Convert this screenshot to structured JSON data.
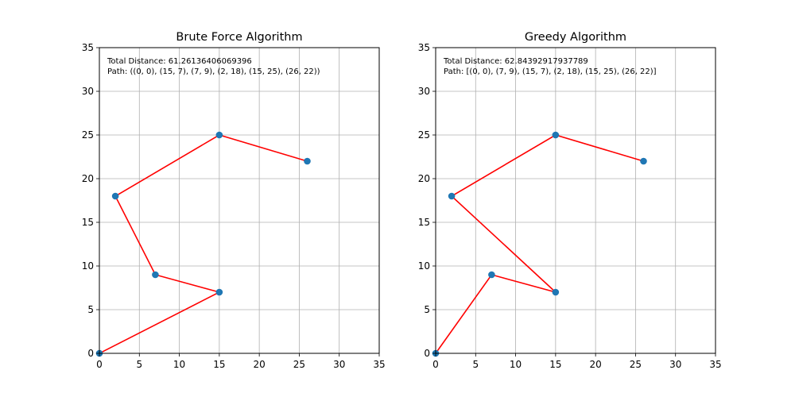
{
  "chart_data": [
    {
      "type": "scatter",
      "title": "Brute Force Algorithm",
      "xlabel": "",
      "ylabel": "",
      "xlim": [
        0,
        35
      ],
      "ylim": [
        0,
        35
      ],
      "xticks": [
        0,
        5,
        10,
        15,
        20,
        25,
        30,
        35
      ],
      "yticks": [
        0,
        5,
        10,
        15,
        20,
        25,
        30,
        35
      ],
      "grid": true,
      "points": [
        [
          0,
          0
        ],
        [
          15,
          7
        ],
        [
          7,
          9
        ],
        [
          2,
          18
        ],
        [
          15,
          25
        ],
        [
          26,
          22
        ]
      ],
      "path": [
        [
          0,
          0
        ],
        [
          15,
          7
        ],
        [
          7,
          9
        ],
        [
          2,
          18
        ],
        [
          15,
          25
        ],
        [
          26,
          22
        ]
      ],
      "point_color": "#1f77b4",
      "line_color": "#ff0000",
      "annotations": [
        "Total Distance: 61.26136406069396",
        "Path: ((0, 0), (15, 7), (7, 9), (2, 18), (15, 25), (26, 22))"
      ]
    },
    {
      "type": "scatter",
      "title": "Greedy Algorithm",
      "xlabel": "",
      "ylabel": "",
      "xlim": [
        0,
        35
      ],
      "ylim": [
        0,
        35
      ],
      "xticks": [
        0,
        5,
        10,
        15,
        20,
        25,
        30,
        35
      ],
      "yticks": [
        0,
        5,
        10,
        15,
        20,
        25,
        30,
        35
      ],
      "grid": true,
      "points": [
        [
          0,
          0
        ],
        [
          7,
          9
        ],
        [
          15,
          7
        ],
        [
          2,
          18
        ],
        [
          15,
          25
        ],
        [
          26,
          22
        ]
      ],
      "path": [
        [
          0,
          0
        ],
        [
          7,
          9
        ],
        [
          15,
          7
        ],
        [
          2,
          18
        ],
        [
          15,
          25
        ],
        [
          26,
          22
        ]
      ],
      "point_color": "#1f77b4",
      "line_color": "#ff0000",
      "annotations": [
        "Total Distance: 62.84392917937789",
        "Path: [(0, 0), (7, 9), (15, 7), (2, 18), (15, 25), (26, 22)]"
      ]
    }
  ]
}
